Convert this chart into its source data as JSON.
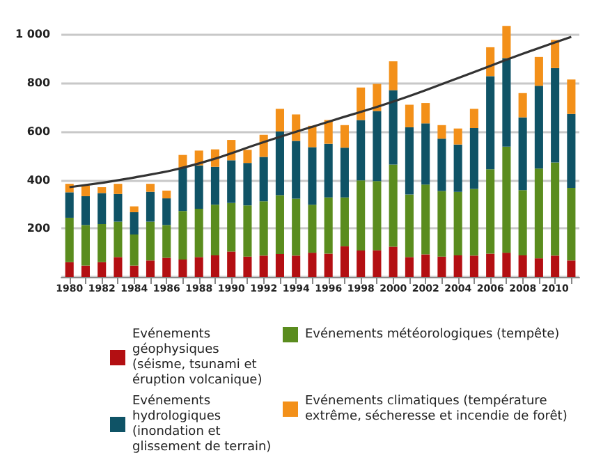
{
  "chart_data": {
    "type": "bar",
    "stacked": true,
    "categories": [
      "1980",
      null,
      "1982",
      null,
      "1984",
      null,
      "1986",
      null,
      "1988",
      null,
      "1990",
      null,
      "1992",
      null,
      "1994",
      null,
      "1996",
      null,
      "1998",
      null,
      "2000",
      null,
      "2002",
      null,
      "2004",
      null,
      "2006",
      null,
      "2008",
      null,
      "2010",
      null
    ],
    "series": [
      {
        "name": "Evénements géophysiques (séisme, tsunami et éruption volcanique)",
        "color": "#b30f12",
        "values": [
          61,
          47,
          61,
          82,
          47,
          68,
          79,
          72,
          82,
          89,
          105,
          84,
          88,
          95,
          88,
          100,
          96,
          126,
          109,
          110,
          125,
          82,
          93,
          84,
          89,
          88,
          96,
          100,
          89,
          77,
          88,
          68
        ]
      },
      {
        "name": "Evénements météorologiques (tempête)",
        "color": "#5a8c1e",
        "values": [
          183,
          167,
          157,
          146,
          128,
          160,
          135,
          200,
          199,
          209,
          200,
          211,
          224,
          242,
          235,
          198,
          232,
          202,
          289,
          285,
          338,
          258,
          288,
          270,
          262,
          275,
          348,
          437,
          269,
          370,
          384,
          299
        ]
      },
      {
        "name": "Evénements hydrologiques (inondation et glissement de terrain)",
        "color": "#0f5366",
        "values": [
          105,
          119,
          128,
          114,
          92,
          123,
          110,
          179,
          179,
          156,
          176,
          175,
          183,
          263,
          238,
          237,
          221,
          205,
          249,
          289,
          307,
          277,
          252,
          216,
          195,
          251,
          384,
          365,
          300,
          341,
          389,
          305
        ]
      },
      {
        "name": "Evénements climatiques (température extrême, sécheresse et incendie de forêt)",
        "color": "#f39019",
        "values": [
          35,
          44,
          24,
          42,
          24,
          33,
          32,
          52,
          61,
          72,
          84,
          54,
          91,
          93,
          109,
          88,
          98,
          93,
          134,
          112,
          119,
          93,
          84,
          56,
          66,
          79,
          119,
          133,
          100,
          119,
          116,
          142
        ]
      },
      {
        "type": "line",
        "color": "#333333",
        "marker": "none",
        "values": [
          370,
          null,
          null,
          null,
          410,
          null,
          null,
          null,
          468,
          null,
          null,
          null,
          556,
          null,
          null,
          null,
          640,
          null,
          null,
          null,
          723,
          null,
          null,
          null,
          820,
          null,
          null,
          null,
          920,
          null,
          null,
          990
        ]
      }
    ],
    "ylim": [
      0,
      1050
    ],
    "yticks": [
      {
        "value": 0,
        "label": null
      },
      200,
      400,
      600,
      800,
      {
        "value": 1000,
        "label": "1 000"
      }
    ],
    "grid": "y",
    "legend": "bottom"
  }
}
